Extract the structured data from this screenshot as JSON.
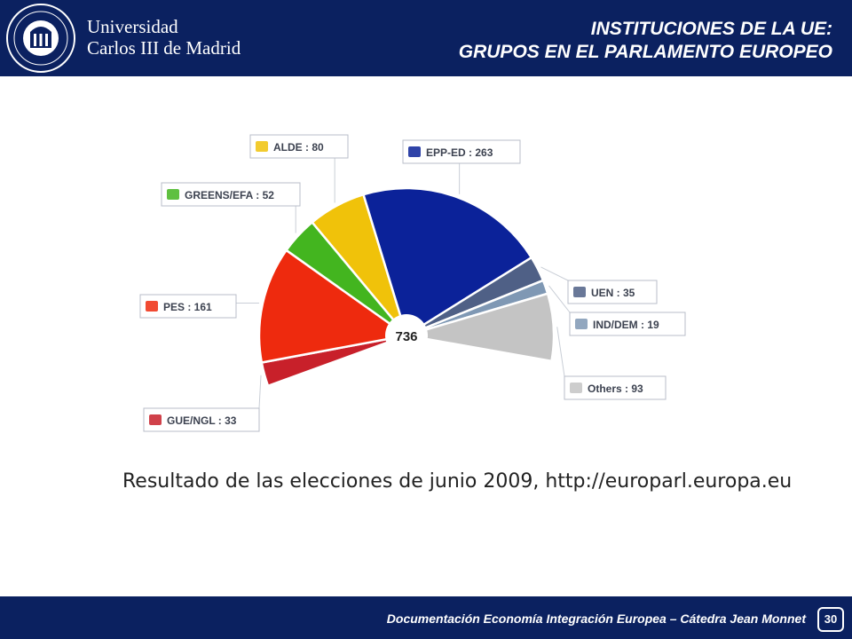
{
  "header": {
    "university_line1": "Universidad",
    "university_line2": "Carlos III de Madrid",
    "title_line1": "INSTITUCIONES DE LA UE:",
    "title_line2": "GRUPOS EN EL PARLAMENTO EUROPEO",
    "background_color": "#0b2160"
  },
  "chart_data": {
    "type": "pie",
    "subtype": "parliament-semicircle",
    "title": "",
    "center_label": "736",
    "total": 736,
    "slices": [
      {
        "label": "GUE/NGL : 33",
        "name": "GUE/NGL",
        "value": 33,
        "color": "#c8202a",
        "icon": "gue-ngl-logo-icon"
      },
      {
        "label": "PES : 161",
        "name": "PES",
        "value": 161,
        "color": "#ee2a0e",
        "icon": "pes-logo-icon"
      },
      {
        "label": "GREENS/EFA : 52",
        "name": "GREENS/EFA",
        "value": 52,
        "color": "#43b51f",
        "icon": "greens-efa-logo-icon"
      },
      {
        "label": "ALDE : 80",
        "name": "ALDE",
        "value": 80,
        "color": "#f0c20a",
        "icon": "alde-logo-icon"
      },
      {
        "label": "EPP-ED : 263",
        "name": "EPP-ED",
        "value": 263,
        "color": "#0b2299",
        "icon": "epp-ed-logo-icon"
      },
      {
        "label": "UEN : 35",
        "name": "UEN",
        "value": 35,
        "color": "#4f6086",
        "icon": "uen-logo-icon"
      },
      {
        "label": "IND/DEM : 19",
        "name": "IND/DEM",
        "value": 19,
        "color": "#7f98b4",
        "icon": "ind-dem-logo-icon"
      },
      {
        "label": "Others : 93",
        "name": "Others",
        "value": 93,
        "color": "#c4c4c4",
        "icon": "others-logo-icon"
      }
    ]
  },
  "caption": "Resultado de las elecciones de junio 2009, http://europarl.europa.eu",
  "footer": {
    "text": "Documentación Economía Integración Europea – Cátedra Jean Monnet",
    "page_number": "30"
  }
}
